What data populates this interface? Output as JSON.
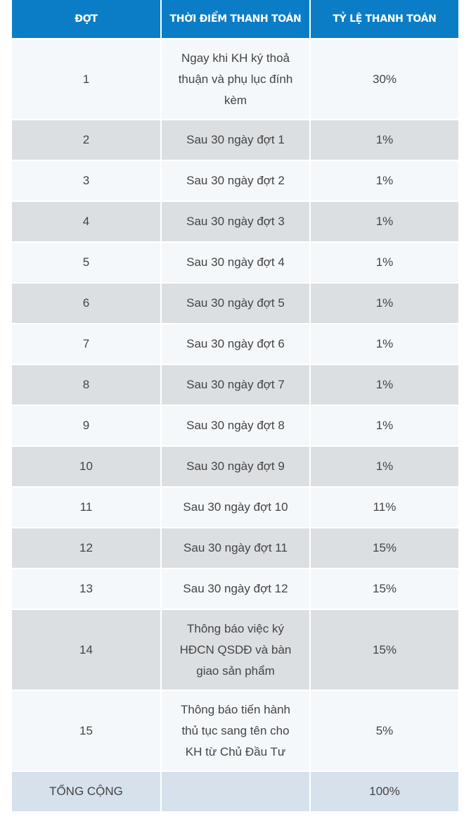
{
  "table": {
    "headers": {
      "col1": "ĐỢT",
      "col2": "THỜI ĐIỂM THANH TOÁN",
      "col3": "TỶ LỆ THANH TOÁN"
    },
    "rows": [
      {
        "dot": "1",
        "time": "Ngay khi KH ký thoả thuận và phụ lục đính kèm",
        "rate": "30%"
      },
      {
        "dot": "2",
        "time": "Sau 30 ngày đợt 1",
        "rate": "1%"
      },
      {
        "dot": "3",
        "time": "Sau 30 ngày đợt 2",
        "rate": "1%"
      },
      {
        "dot": "4",
        "time": "Sau 30 ngày đợt 3",
        "rate": "1%"
      },
      {
        "dot": "5",
        "time": "Sau 30 ngày đợt 4",
        "rate": "1%"
      },
      {
        "dot": "6",
        "time": "Sau 30 ngày đợt 5",
        "rate": "1%"
      },
      {
        "dot": "7",
        "time": "Sau 30 ngày đợt 6",
        "rate": "1%"
      },
      {
        "dot": "8",
        "time": "Sau 30 ngày đợt 7",
        "rate": "1%"
      },
      {
        "dot": "9",
        "time": "Sau 30 ngày đợt 8",
        "rate": "1%"
      },
      {
        "dot": "10",
        "time": "Sau 30 ngày đợt 9",
        "rate": "1%"
      },
      {
        "dot": "11",
        "time": "Sau 30 ngày đợt 10",
        "rate": "11%"
      },
      {
        "dot": "12",
        "time": "Sau 30 ngày đợt 11",
        "rate": "15%"
      },
      {
        "dot": "13",
        "time": "Sau 30 ngày đợt 12",
        "rate": "15%"
      },
      {
        "dot": "14",
        "time": "Thông báo việc ký HĐCN QSDĐ và bàn giao sản phẩm",
        "rate": "15%"
      },
      {
        "dot": "15",
        "time": "Thông báo tiến hành thủ tục sang tên cho KH từ Chủ Đầu Tư",
        "rate": "5%"
      }
    ],
    "total": {
      "label": "TỔNG CỘNG",
      "time": "",
      "rate": "100%"
    }
  },
  "colors": {
    "header_bg": "#0b7dc6",
    "row_light": "#f5f8fb",
    "row_grey": "#dcdfe2",
    "total_bg": "#d6e1ec",
    "text": "#444444"
  }
}
